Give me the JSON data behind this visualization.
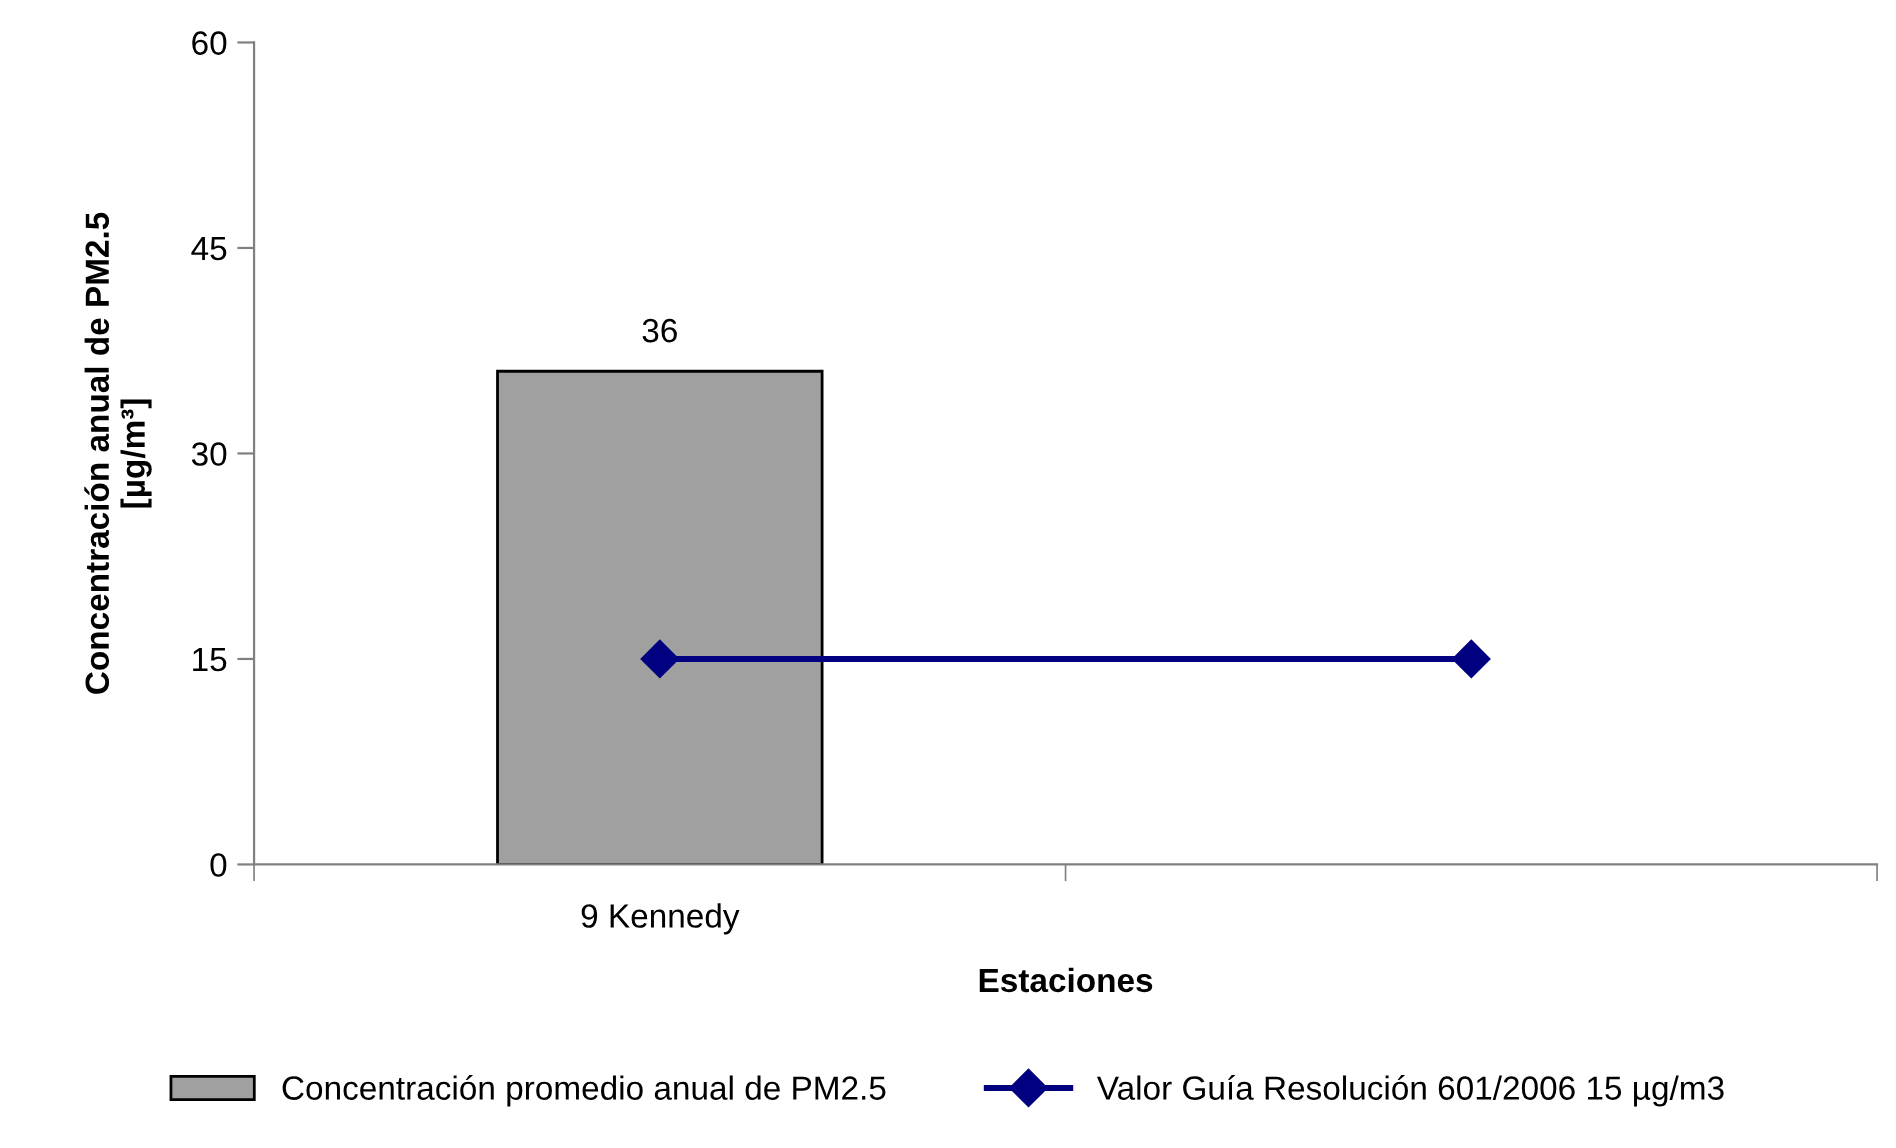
{
  "chart_data": {
    "type": "bar",
    "xlabel": "Estaciones",
    "ylabel": "Concentración anual de PM2.5\n[µg/m³]",
    "categories": [
      "9 Kennedy",
      null
    ],
    "series": [
      {
        "name": "Concentración promedio anual de PM2.5",
        "color": "#a0a0a0",
        "values": [
          36,
          null
        ],
        "value_labels": [
          "36",
          null
        ]
      },
      {
        "name": "Valor Guía Resolución 601/2006 15 µg/m3",
        "type": "line",
        "color": "#000080",
        "values": [
          15,
          15
        ],
        "marker": "diamond",
        "line_style": "solid"
      }
    ],
    "ylim": [
      0,
      60
    ],
    "yticks": [
      0,
      15,
      30,
      45,
      60
    ],
    "legend": "bottom",
    "grid": false
  }
}
